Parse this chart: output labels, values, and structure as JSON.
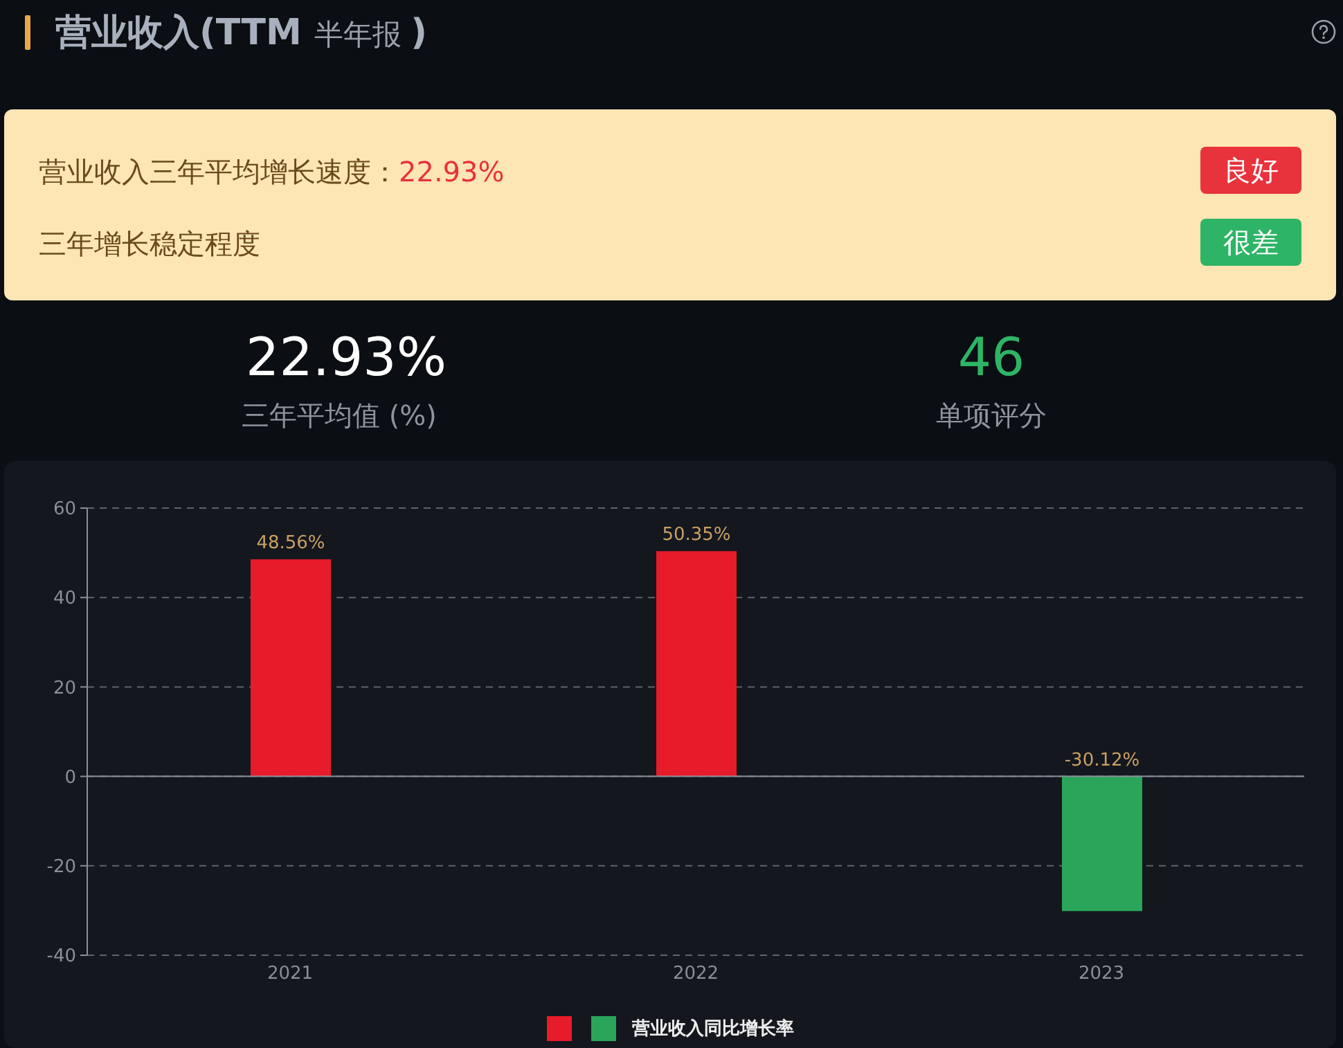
{
  "chart_data": {
    "type": "bar",
    "title": "营业收入(TTM 半年报 )",
    "annotations": [
      "营业收入三年平均增长速度：",
      "22.93%",
      "良好",
      "三年增长稳定程度",
      "很差",
      "22.93%",
      "三年平均值 (%)",
      "46",
      "单项评分"
    ],
    "categories": [
      "2021",
      "2022",
      "2023"
    ],
    "series": [
      {
        "name": "营业收入同比增长率",
        "colors": [
          "#e81b2a",
          "#e81b2a",
          "#2aa55a"
        ],
        "values": [
          48.56,
          50.35,
          -30.12
        ],
        "value_labels": [
          "48.56%",
          "50.35%",
          "-30.12%"
        ]
      }
    ],
    "ylim": [
      -40,
      60
    ],
    "yticks": [
      -40,
      -20,
      0,
      20,
      40,
      60
    ],
    "grid": "y",
    "legend": "bottom"
  }
}
